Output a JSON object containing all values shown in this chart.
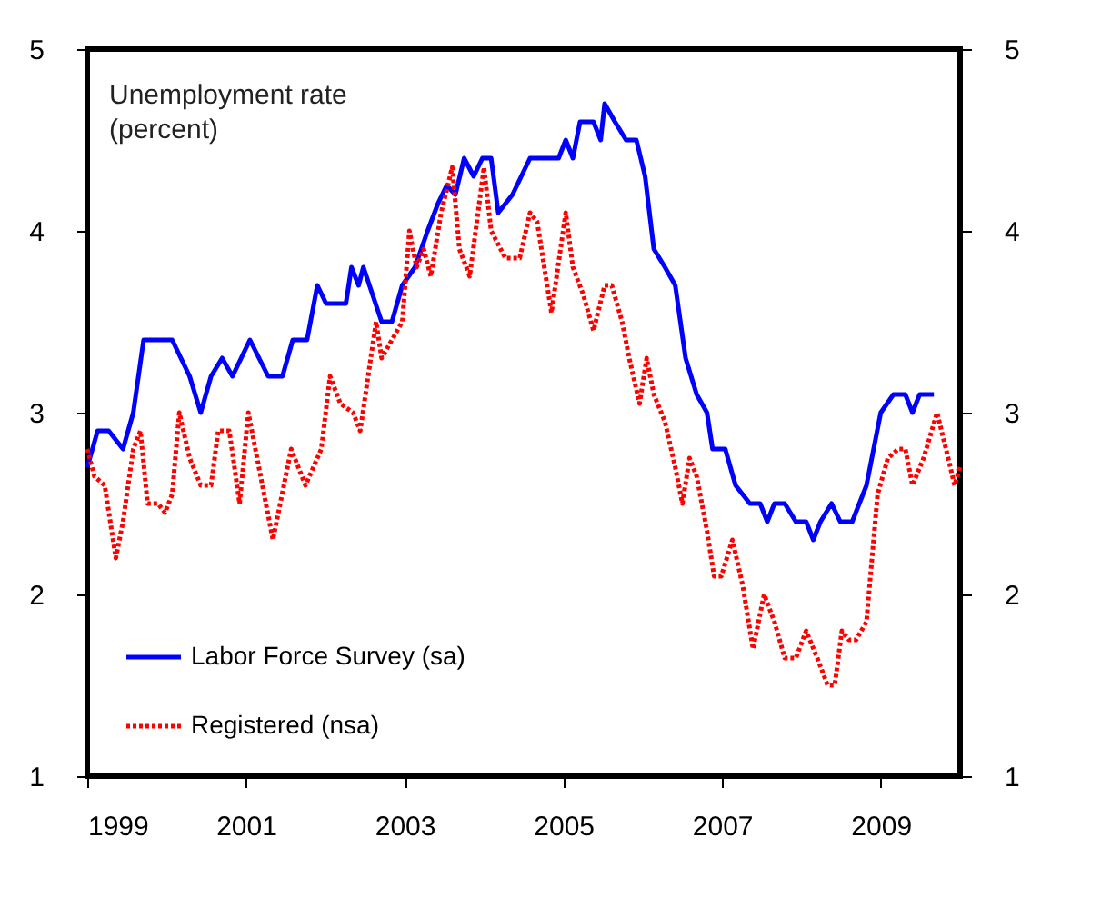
{
  "chart_data": {
    "type": "line",
    "annotations": [
      "Unemployment rate\n(percent)"
    ],
    "xlim": [
      1999,
      2010
    ],
    "xticks": [
      1999,
      2001,
      2003,
      2005,
      2007,
      2009
    ],
    "ylim": [
      1,
      5
    ],
    "yticks": [
      1,
      2,
      3,
      4,
      5
    ],
    "y2lim": [
      1,
      5
    ],
    "y2ticks": [
      1,
      2,
      3,
      4,
      5
    ],
    "grid": false,
    "legend": "bottom left",
    "marker": "none",
    "series": [
      {
        "name": "Labor Force Survey (sa)",
        "color": "#0000ff",
        "line_style": "solid",
        "x": [
          1999.0,
          1999.13,
          1999.27,
          1999.45,
          1999.58,
          1999.71,
          2000.07,
          2000.29,
          2000.43,
          2000.56,
          2000.7,
          2000.83,
          2001.05,
          2001.28,
          2001.46,
          2001.59,
          2001.77,
          2001.9,
          2002.01,
          2002.26,
          2002.33,
          2002.42,
          2002.48,
          2002.71,
          2002.84,
          2002.97,
          2003.13,
          2003.29,
          2003.42,
          2003.53,
          2003.64,
          2003.75,
          2003.87,
          2003.98,
          2004.09,
          2004.18,
          2004.36,
          2004.47,
          2004.58,
          2004.94,
          2005.03,
          2005.12,
          2005.21,
          2005.38,
          2005.47,
          2005.52,
          2005.65,
          2005.79,
          2005.92,
          2006.03,
          2006.14,
          2006.28,
          2006.41,
          2006.54,
          2006.68,
          2006.81,
          2006.88,
          2007.04,
          2007.17,
          2007.35,
          2007.48,
          2007.57,
          2007.66,
          2007.79,
          2007.93,
          2008.06,
          2008.15,
          2008.24,
          2008.38,
          2008.49,
          2008.64,
          2008.82,
          2009.0,
          2009.16,
          2009.31,
          2009.4,
          2009.49,
          2009.67
        ],
        "values": [
          2.7,
          2.9,
          2.9,
          2.8,
          3.0,
          3.4,
          3.4,
          3.2,
          3.0,
          3.2,
          3.3,
          3.2,
          3.4,
          3.2,
          3.2,
          3.4,
          3.4,
          3.7,
          3.6,
          3.6,
          3.8,
          3.7,
          3.8,
          3.5,
          3.5,
          3.7,
          3.8,
          4.0,
          4.15,
          4.25,
          4.2,
          4.4,
          4.3,
          4.4,
          4.4,
          4.1,
          4.2,
          4.3,
          4.4,
          4.4,
          4.5,
          4.4,
          4.6,
          4.6,
          4.5,
          4.7,
          4.6,
          4.5,
          4.5,
          4.3,
          3.9,
          3.8,
          3.7,
          3.3,
          3.1,
          3.0,
          2.8,
          2.8,
          2.6,
          2.5,
          2.5,
          2.4,
          2.5,
          2.5,
          2.4,
          2.4,
          2.3,
          2.4,
          2.5,
          2.4,
          2.4,
          2.6,
          3.0,
          3.1,
          3.1,
          3.0,
          3.1,
          3.1
        ]
      },
      {
        "name": "Registered (nsa)",
        "color": "#ff0000",
        "line_style": "dotted",
        "x": [
          1999.0,
          1999.09,
          1999.22,
          1999.36,
          1999.45,
          1999.58,
          1999.67,
          1999.76,
          1999.89,
          1999.98,
          2000.07,
          2000.16,
          2000.29,
          2000.43,
          2000.56,
          2000.65,
          2000.79,
          2000.92,
          2001.03,
          2001.34,
          2001.57,
          2001.75,
          2001.95,
          2002.06,
          2002.19,
          2002.35,
          2002.44,
          2002.64,
          2002.71,
          2002.84,
          2002.97,
          2003.06,
          2003.15,
          2003.24,
          2003.33,
          2003.46,
          2003.6,
          2003.69,
          2003.82,
          2004.0,
          2004.09,
          2004.27,
          2004.45,
          2004.58,
          2004.67,
          2004.85,
          2005.03,
          2005.12,
          2005.25,
          2005.38,
          2005.52,
          2005.61,
          2005.74,
          2005.83,
          2005.96,
          2006.05,
          2006.14,
          2006.28,
          2006.41,
          2006.5,
          2006.59,
          2006.68,
          2006.81,
          2006.9,
          2006.99,
          2007.13,
          2007.26,
          2007.39,
          2007.53,
          2007.66,
          2007.79,
          2007.93,
          2008.06,
          2008.2,
          2008.33,
          2008.42,
          2008.51,
          2008.6,
          2008.69,
          2008.82,
          2008.96,
          2009.09,
          2009.22,
          2009.31,
          2009.4,
          2009.54,
          2009.71,
          2009.85,
          2009.93,
          2010.0
        ],
        "values": [
          2.8,
          2.65,
          2.6,
          2.2,
          2.4,
          2.8,
          2.9,
          2.5,
          2.5,
          2.45,
          2.55,
          3.0,
          2.75,
          2.6,
          2.6,
          2.9,
          2.9,
          2.5,
          3.0,
          2.3,
          2.8,
          2.6,
          2.8,
          3.2,
          3.05,
          3.0,
          2.9,
          3.5,
          3.3,
          3.4,
          3.5,
          4.0,
          3.8,
          3.9,
          3.75,
          4.1,
          4.35,
          3.9,
          3.75,
          4.35,
          4.0,
          3.85,
          3.85,
          4.1,
          4.05,
          3.55,
          4.1,
          3.8,
          3.65,
          3.45,
          3.7,
          3.7,
          3.5,
          3.3,
          3.05,
          3.3,
          3.1,
          2.95,
          2.7,
          2.5,
          2.75,
          2.65,
          2.35,
          2.1,
          2.1,
          2.3,
          2.05,
          1.7,
          2.0,
          1.85,
          1.65,
          1.65,
          1.8,
          1.65,
          1.5,
          1.5,
          1.8,
          1.75,
          1.75,
          1.85,
          2.55,
          2.75,
          2.8,
          2.8,
          2.6,
          2.75,
          3.0,
          2.75,
          2.6,
          2.7
        ]
      }
    ]
  }
}
